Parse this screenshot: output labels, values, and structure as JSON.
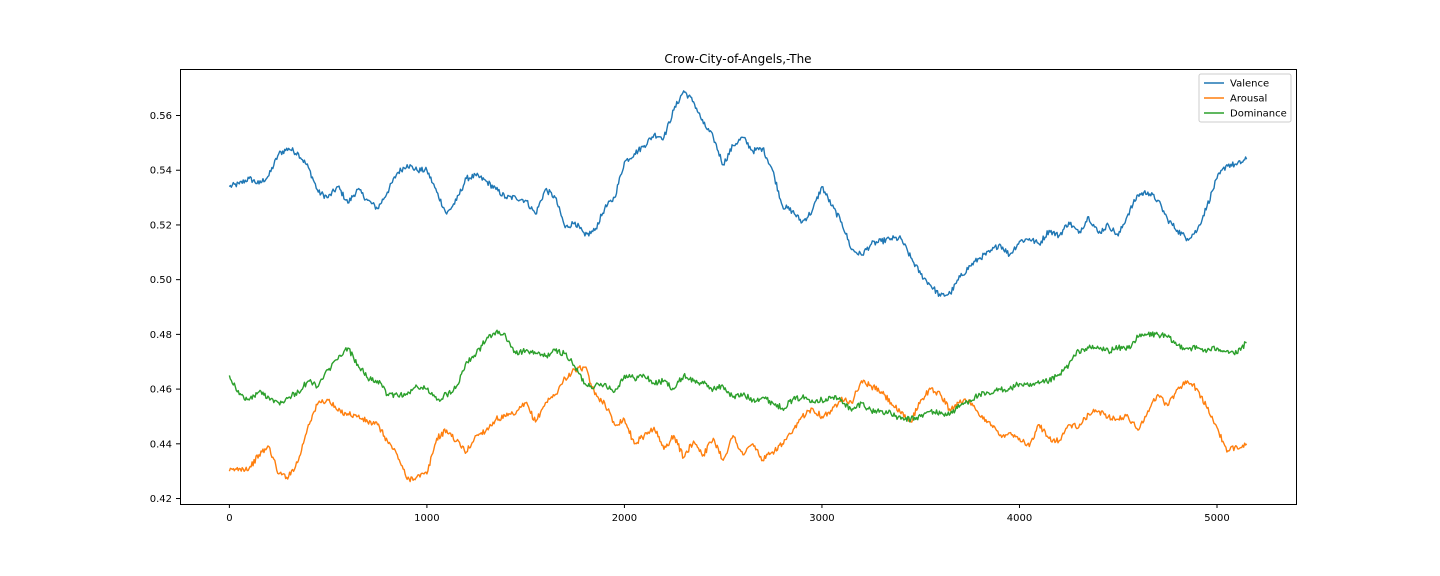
{
  "chart_data": {
    "type": "line",
    "title": "Crow-City-of-Angels,-The",
    "xlabel": "",
    "ylabel": "",
    "xlim": [
      -250,
      5400
    ],
    "ylim": [
      0.418,
      0.577
    ],
    "xticks": [
      0,
      1000,
      2000,
      3000,
      4000,
      5000
    ],
    "yticks": [
      0.42,
      0.44,
      0.46,
      0.48,
      0.5,
      0.52,
      0.54,
      0.56
    ],
    "xtick_labels": [
      "0",
      "1000",
      "2000",
      "3000",
      "4000",
      "5000"
    ],
    "ytick_labels": [
      "0.42",
      "0.44",
      "0.46",
      "0.48",
      "0.50",
      "0.52",
      "0.54",
      "0.56"
    ],
    "legend_position": "top-right",
    "grid": false,
    "series": [
      {
        "name": "Valence",
        "color": "#1f77b4",
        "x": [
          0,
          50,
          100,
          150,
          200,
          250,
          300,
          350,
          400,
          450,
          500,
          550,
          600,
          650,
          700,
          750,
          800,
          850,
          900,
          950,
          1000,
          1050,
          1100,
          1150,
          1200,
          1250,
          1300,
          1350,
          1400,
          1450,
          1500,
          1550,
          1600,
          1650,
          1700,
          1750,
          1800,
          1850,
          1900,
          1950,
          2000,
          2050,
          2100,
          2150,
          2200,
          2250,
          2300,
          2350,
          2400,
          2450,
          2500,
          2550,
          2600,
          2650,
          2700,
          2750,
          2800,
          2850,
          2900,
          2950,
          3000,
          3050,
          3100,
          3150,
          3200,
          3250,
          3300,
          3350,
          3400,
          3450,
          3500,
          3550,
          3600,
          3650,
          3700,
          3750,
          3800,
          3850,
          3900,
          3950,
          4000,
          4050,
          4100,
          4150,
          4200,
          4250,
          4300,
          4350,
          4400,
          4450,
          4500,
          4550,
          4600,
          4650,
          4700,
          4750,
          4800,
          4850,
          4900,
          4950,
          5000,
          5050,
          5100,
          5150
        ],
        "y": [
          0.534,
          0.535,
          0.537,
          0.535,
          0.538,
          0.546,
          0.548,
          0.546,
          0.541,
          0.532,
          0.53,
          0.534,
          0.528,
          0.533,
          0.529,
          0.526,
          0.532,
          0.539,
          0.542,
          0.54,
          0.54,
          0.532,
          0.524,
          0.529,
          0.537,
          0.538,
          0.536,
          0.533,
          0.53,
          0.53,
          0.529,
          0.524,
          0.533,
          0.53,
          0.519,
          0.521,
          0.516,
          0.518,
          0.526,
          0.53,
          0.543,
          0.546,
          0.549,
          0.553,
          0.552,
          0.562,
          0.569,
          0.565,
          0.557,
          0.552,
          0.542,
          0.549,
          0.552,
          0.547,
          0.548,
          0.54,
          0.527,
          0.525,
          0.521,
          0.525,
          0.534,
          0.527,
          0.521,
          0.511,
          0.509,
          0.513,
          0.514,
          0.515,
          0.515,
          0.508,
          0.502,
          0.498,
          0.494,
          0.495,
          0.501,
          0.505,
          0.508,
          0.51,
          0.513,
          0.509,
          0.514,
          0.515,
          0.513,
          0.518,
          0.516,
          0.521,
          0.517,
          0.523,
          0.517,
          0.52,
          0.516,
          0.524,
          0.531,
          0.532,
          0.529,
          0.522,
          0.518,
          0.515,
          0.518,
          0.527,
          0.537,
          0.542,
          0.542,
          0.544
        ]
      },
      {
        "name": "Arousal",
        "color": "#ff7f0e",
        "x": [
          0,
          50,
          100,
          150,
          200,
          250,
          300,
          350,
          400,
          450,
          500,
          550,
          600,
          650,
          700,
          750,
          800,
          850,
          900,
          950,
          1000,
          1050,
          1100,
          1150,
          1200,
          1250,
          1300,
          1350,
          1400,
          1450,
          1500,
          1550,
          1600,
          1650,
          1700,
          1750,
          1800,
          1850,
          1900,
          1950,
          2000,
          2050,
          2100,
          2150,
          2200,
          2250,
          2300,
          2350,
          2400,
          2450,
          2500,
          2550,
          2600,
          2650,
          2700,
          2750,
          2800,
          2850,
          2900,
          2950,
          3000,
          3050,
          3100,
          3150,
          3200,
          3250,
          3300,
          3350,
          3400,
          3450,
          3500,
          3550,
          3600,
          3650,
          3700,
          3750,
          3800,
          3850,
          3900,
          3950,
          4000,
          4050,
          4100,
          4150,
          4200,
          4250,
          4300,
          4350,
          4400,
          4450,
          4500,
          4550,
          4600,
          4650,
          4700,
          4750,
          4800,
          4850,
          4900,
          4950,
          5000,
          5050,
          5100,
          5150
        ],
        "y": [
          0.43,
          0.431,
          0.431,
          0.436,
          0.439,
          0.429,
          0.428,
          0.434,
          0.447,
          0.455,
          0.456,
          0.452,
          0.451,
          0.45,
          0.448,
          0.447,
          0.441,
          0.436,
          0.427,
          0.428,
          0.429,
          0.442,
          0.445,
          0.441,
          0.437,
          0.443,
          0.445,
          0.449,
          0.45,
          0.451,
          0.455,
          0.448,
          0.455,
          0.458,
          0.464,
          0.467,
          0.468,
          0.458,
          0.455,
          0.447,
          0.449,
          0.44,
          0.443,
          0.446,
          0.438,
          0.443,
          0.435,
          0.441,
          0.436,
          0.442,
          0.434,
          0.443,
          0.436,
          0.44,
          0.434,
          0.437,
          0.44,
          0.444,
          0.45,
          0.453,
          0.45,
          0.452,
          0.457,
          0.455,
          0.463,
          0.461,
          0.459,
          0.455,
          0.451,
          0.448,
          0.456,
          0.46,
          0.458,
          0.452,
          0.456,
          0.455,
          0.45,
          0.448,
          0.443,
          0.444,
          0.442,
          0.439,
          0.447,
          0.442,
          0.441,
          0.447,
          0.446,
          0.451,
          0.452,
          0.45,
          0.449,
          0.45,
          0.445,
          0.452,
          0.458,
          0.454,
          0.46,
          0.463,
          0.46,
          0.453,
          0.446,
          0.437,
          0.439,
          0.44
        ]
      },
      {
        "name": "Dominance",
        "color": "#2ca02c",
        "x": [
          0,
          50,
          100,
          150,
          200,
          250,
          300,
          350,
          400,
          450,
          500,
          550,
          600,
          650,
          700,
          750,
          800,
          850,
          900,
          950,
          1000,
          1050,
          1100,
          1150,
          1200,
          1250,
          1300,
          1350,
          1400,
          1450,
          1500,
          1550,
          1600,
          1650,
          1700,
          1750,
          1800,
          1850,
          1900,
          1950,
          2000,
          2050,
          2100,
          2150,
          2200,
          2250,
          2300,
          2350,
          2400,
          2450,
          2500,
          2550,
          2600,
          2650,
          2700,
          2750,
          2800,
          2850,
          2900,
          2950,
          3000,
          3050,
          3100,
          3150,
          3200,
          3250,
          3300,
          3350,
          3400,
          3450,
          3500,
          3550,
          3600,
          3650,
          3700,
          3750,
          3800,
          3850,
          3900,
          3950,
          4000,
          4050,
          4100,
          4150,
          4200,
          4250,
          4300,
          4350,
          4400,
          4450,
          4500,
          4550,
          4600,
          4650,
          4700,
          4750,
          4800,
          4850,
          4900,
          4950,
          5000,
          5050,
          5100,
          5150
        ],
        "y": [
          0.465,
          0.458,
          0.456,
          0.459,
          0.457,
          0.455,
          0.457,
          0.459,
          0.463,
          0.461,
          0.467,
          0.471,
          0.475,
          0.469,
          0.464,
          0.463,
          0.458,
          0.458,
          0.458,
          0.461,
          0.46,
          0.456,
          0.458,
          0.461,
          0.47,
          0.473,
          0.478,
          0.481,
          0.479,
          0.473,
          0.474,
          0.473,
          0.472,
          0.474,
          0.473,
          0.468,
          0.462,
          0.461,
          0.462,
          0.459,
          0.465,
          0.464,
          0.465,
          0.462,
          0.463,
          0.46,
          0.465,
          0.463,
          0.462,
          0.46,
          0.461,
          0.457,
          0.458,
          0.456,
          0.457,
          0.455,
          0.453,
          0.456,
          0.457,
          0.456,
          0.456,
          0.457,
          0.456,
          0.452,
          0.455,
          0.452,
          0.452,
          0.451,
          0.449,
          0.449,
          0.45,
          0.452,
          0.451,
          0.451,
          0.454,
          0.456,
          0.458,
          0.458,
          0.46,
          0.46,
          0.462,
          0.461,
          0.462,
          0.463,
          0.465,
          0.469,
          0.474,
          0.475,
          0.475,
          0.474,
          0.475,
          0.475,
          0.479,
          0.48,
          0.48,
          0.479,
          0.476,
          0.475,
          0.475,
          0.474,
          0.475,
          0.474,
          0.473,
          0.477
        ]
      }
    ]
  }
}
